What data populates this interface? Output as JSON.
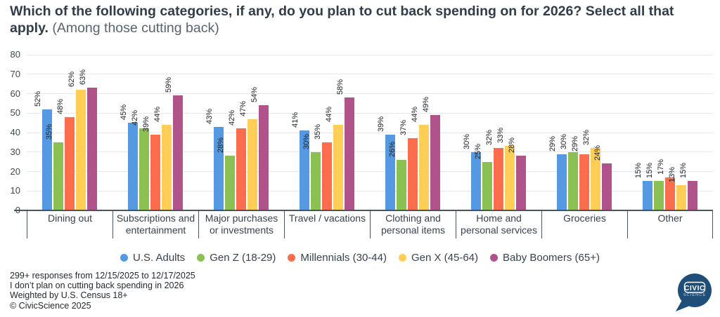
{
  "title": {
    "bold": "Which of the following categories, if any, do you plan to cut back spending on for 2026? Select all that apply.",
    "subtitle": "(Among those cutting back)"
  },
  "chart_data": {
    "type": "bar",
    "title": "Which of the following categories, if any, do you plan to cut back spending on for 2026? Select all that apply. (Among those cutting back)",
    "categories": [
      "Dining out",
      "Subscriptions and\nentertainment",
      "Major purchases\nor investments",
      "Travel / vacations",
      "Clothing and\npersonal items",
      "Home and\npersonal services",
      "Groceries",
      "Other"
    ],
    "series": [
      {
        "name": "U.S. Adults",
        "color": "#5599e2",
        "values": [
          52,
          45,
          43,
          41,
          39,
          30,
          29,
          15
        ]
      },
      {
        "name": "Gen Z (18-29)",
        "color": "#8bc053",
        "values": [
          35,
          42,
          28,
          30,
          26,
          25,
          30,
          15
        ]
      },
      {
        "name": "Millennials (30-44)",
        "color": "#fb6d4c",
        "values": [
          48,
          39,
          42,
          35,
          37,
          32,
          29,
          17
        ]
      },
      {
        "name": "Gen X (45-64)",
        "color": "#ffce56",
        "values": [
          62,
          44,
          47,
          44,
          44,
          33,
          32,
          13
        ]
      },
      {
        "name": "Baby Boomers (65+)",
        "color": "#b0538a",
        "values": [
          63,
          59,
          54,
          58,
          49,
          28,
          24,
          15
        ]
      }
    ],
    "ylim": [
      0,
      80
    ],
    "yticks": [
      0,
      10,
      20,
      30,
      40,
      50,
      60,
      70,
      80
    ],
    "value_suffix": "%",
    "grid": true,
    "legend_position": "bottom"
  },
  "footer": {
    "lines": [
      "299+ responses from 12/15/2025 to 12/17/2025",
      "I don’t plan on cutting back spending in 2026",
      "Weighted by U.S. Census 18+",
      "© CivicScience 2025"
    ]
  },
  "logo": {
    "line1": "CIVIC",
    "line2": "SCIENCE",
    "color": "#1f4e79"
  }
}
